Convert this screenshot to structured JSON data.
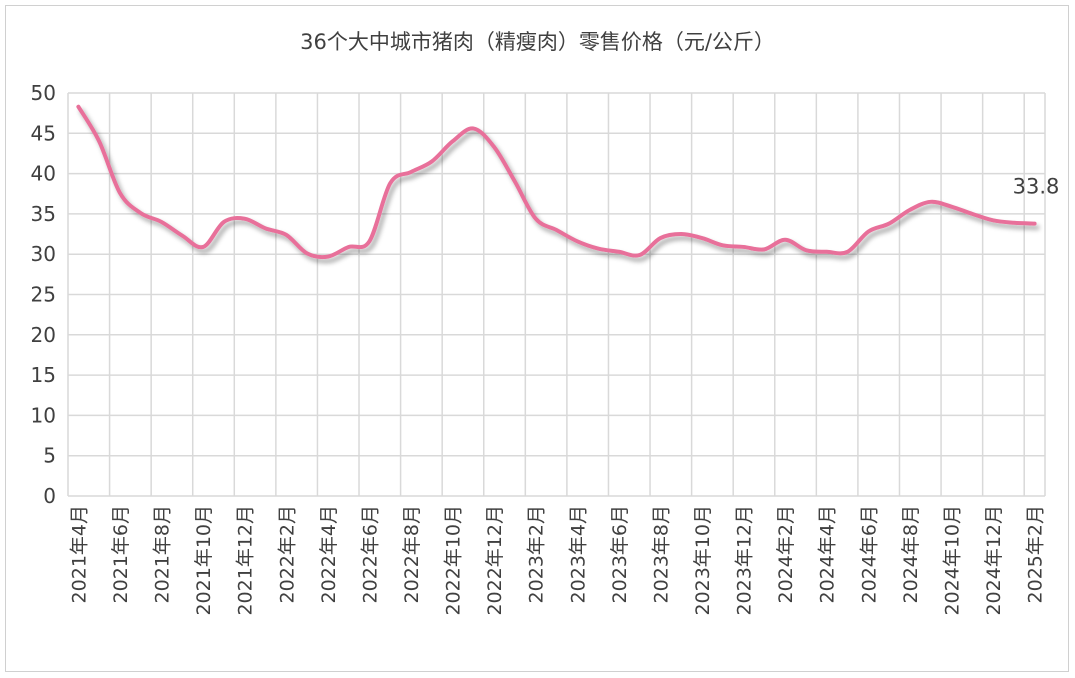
{
  "chart_data": {
    "type": "line",
    "title": "36个大中城市猪肉（精瘦肉）零售价格（元/公斤）",
    "xlabel": "",
    "ylabel": "",
    "ylim": [
      0,
      50
    ],
    "yticks": [
      0,
      5,
      10,
      15,
      20,
      25,
      30,
      35,
      40,
      45,
      50
    ],
    "grid": true,
    "legend": "none",
    "line_color": "#E8709A",
    "categories": [
      "2021年4月",
      "2021年5月",
      "2021年6月",
      "2021年7月",
      "2021年8月",
      "2021年9月",
      "2021年10月",
      "2021年11月",
      "2021年12月",
      "2022年1月",
      "2022年2月",
      "2022年3月",
      "2022年4月",
      "2022年5月",
      "2022年6月",
      "2022年7月",
      "2022年8月",
      "2022年9月",
      "2022年10月",
      "2022年11月",
      "2022年12月",
      "2023年1月",
      "2023年2月",
      "2023年3月",
      "2023年4月",
      "2023年5月",
      "2023年6月",
      "2023年7月",
      "2023年8月",
      "2023年9月",
      "2023年10月",
      "2023年11月",
      "2023年12月",
      "2024年1月",
      "2024年2月",
      "2024年3月",
      "2024年4月",
      "2024年5月",
      "2024年6月",
      "2024年7月",
      "2024年8月",
      "2024年9月",
      "2024年10月",
      "2024年11月",
      "2024年12月",
      "2025年1月",
      "2025年2月"
    ],
    "tick_label_every": 2,
    "values": [
      48.3,
      44.0,
      37.6,
      35.1,
      34.0,
      32.3,
      30.9,
      34.0,
      34.4,
      33.2,
      32.4,
      30.1,
      29.7,
      30.9,
      31.6,
      38.8,
      40.2,
      41.5,
      44.0,
      45.6,
      43.3,
      39.0,
      34.4,
      33.0,
      31.6,
      30.7,
      30.3,
      29.9,
      32.0,
      32.5,
      32.0,
      31.1,
      30.9,
      30.6,
      31.8,
      30.5,
      30.3,
      30.3,
      32.8,
      33.8,
      35.5,
      36.5,
      35.9,
      35.0,
      34.2,
      33.9,
      33.8
    ],
    "data_label": "33.8"
  }
}
